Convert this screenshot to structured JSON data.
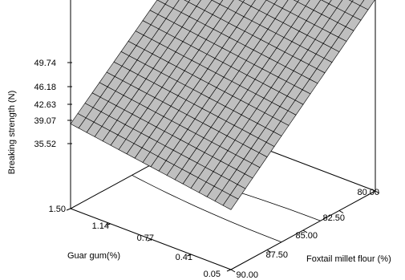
{
  "chart_data": {
    "type": "surface",
    "zlabel": "Breaking strength (N)",
    "xlabel": "Guar gum(%)",
    "ylabel": "Foxtail millet flour (%)",
    "x_ticks": [
      "1.50",
      "1.14",
      "0.77",
      "0.41",
      "0.05"
    ],
    "y_ticks": [
      "80.00",
      "82.50",
      "85.00",
      "87.50",
      "90.00"
    ],
    "z_ticks": [
      "35.52",
      "39.07",
      "42.63",
      "46.18",
      "49.74"
    ],
    "xlim": [
      0.05,
      1.5
    ],
    "ylim": [
      80.0,
      90.0
    ],
    "zlim": [
      32.0,
      49.74
    ],
    "x": [
      0.05,
      1.5
    ],
    "y": [
      80.0,
      90.0
    ],
    "z": [
      [
        48.0,
        37.0
      ],
      [
        49.74,
        39.07
      ]
    ],
    "surface_color": "#bfbfbf",
    "grid_color": "#000000"
  }
}
